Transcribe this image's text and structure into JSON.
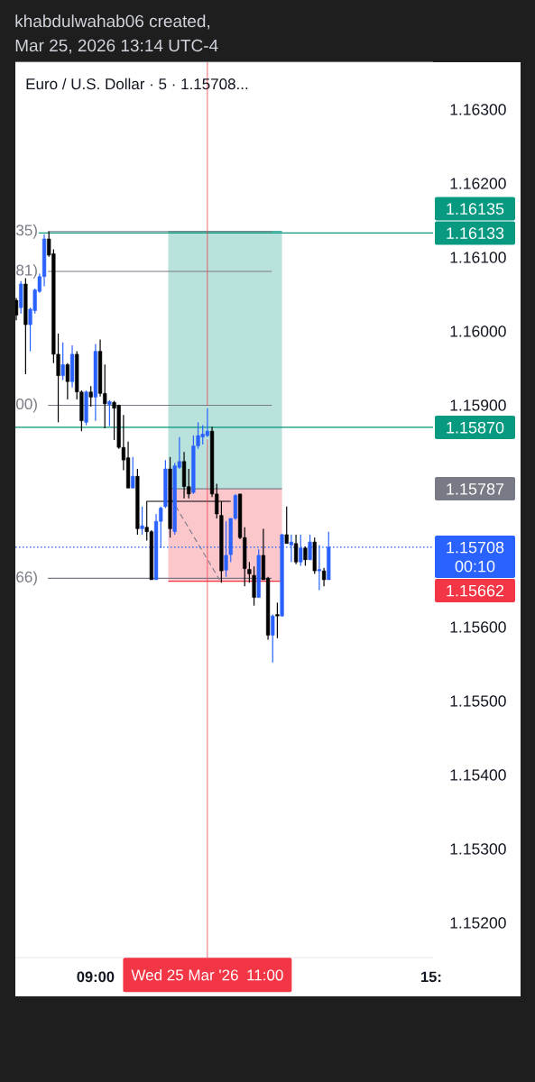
{
  "chart_data": {
    "type": "candlestick",
    "title": "Euro / U.S. Dollar · 5 · 1.15708...",
    "annotations": [
      "khabdulwahab06 created,",
      "Mar 25, 2026 13:14 UTC-4",
      "00:10",
      "1.16135",
      "1.15787",
      "1.15662",
      {
        "text": "35)",
        "x": "2026-03-25T08:09",
        "y": 1.16135
      },
      {
        "text": "81)",
        "x": "2026-03-25T08:09",
        "y": 1.16081
      },
      {
        "text": "00)",
        "x": "2026-03-25T08:09",
        "y": 1.159
      },
      {
        "text": "66)",
        "x": "2026-03-25T08:09",
        "y": 1.15666
      }
    ],
    "x": [
      "2026-03-25T07:35",
      "2026-03-25T07:40",
      "2026-03-25T07:45",
      "2026-03-25T07:50",
      "2026-03-25T07:55",
      "2026-03-25T08:00",
      "2026-03-25T08:05",
      "2026-03-25T08:10",
      "2026-03-25T08:15",
      "2026-03-25T08:20",
      "2026-03-25T08:25",
      "2026-03-25T08:30",
      "2026-03-25T08:35",
      "2026-03-25T08:40",
      "2026-03-25T08:45",
      "2026-03-25T08:50",
      "2026-03-25T08:55",
      "2026-03-25T09:00",
      "2026-03-25T09:05",
      "2026-03-25T09:10",
      "2026-03-25T09:15",
      "2026-03-25T09:20",
      "2026-03-25T09:25",
      "2026-03-25T09:30",
      "2026-03-25T09:35",
      "2026-03-25T09:40",
      "2026-03-25T09:45",
      "2026-03-25T09:50",
      "2026-03-25T09:55",
      "2026-03-25T10:00",
      "2026-03-25T10:05",
      "2026-03-25T10:10",
      "2026-03-25T10:15",
      "2026-03-25T10:20",
      "2026-03-25T10:25",
      "2026-03-25T10:30",
      "2026-03-25T10:35",
      "2026-03-25T10:40",
      "2026-03-25T10:45",
      "2026-03-25T10:50",
      "2026-03-25T10:55",
      "2026-03-25T11:00",
      "2026-03-25T11:05",
      "2026-03-25T11:10",
      "2026-03-25T11:15",
      "2026-03-25T11:20",
      "2026-03-25T11:25",
      "2026-03-25T11:30",
      "2026-03-25T11:35",
      "2026-03-25T11:40",
      "2026-03-25T11:45",
      "2026-03-25T11:50",
      "2026-03-25T11:55",
      "2026-03-25T12:00",
      "2026-03-25T12:05",
      "2026-03-25T12:10",
      "2026-03-25T12:15",
      "2026-03-25T12:20",
      "2026-03-25T12:25",
      "2026-03-25T12:30",
      "2026-03-25T12:35",
      "2026-03-25T12:40",
      "2026-03-25T12:45",
      "2026-03-25T12:50",
      "2026-03-25T12:55",
      "2026-03-25T13:00",
      "2026-03-25T13:05",
      "2026-03-25T13:10"
    ],
    "ohlc": [
      [
        1.16042,
        1.16045,
        1.16015,
        1.16022
      ],
      [
        1.16032,
        1.16068,
        1.16024,
        1.16064
      ],
      [
        1.16064,
        1.16072,
        1.15942,
        1.16009
      ],
      [
        1.16009,
        1.16032,
        1.15973,
        1.1603
      ],
      [
        1.16028,
        1.16058,
        1.16024,
        1.16056
      ],
      [
        1.16054,
        1.16078,
        1.16052,
        1.16074
      ],
      [
        1.16074,
        1.16131,
        1.16061,
        1.16125
      ],
      [
        1.16125,
        1.16135,
        1.16101,
        1.16103
      ],
      [
        1.16105,
        1.16111,
        1.15957,
        1.15969
      ],
      [
        1.15969,
        1.15997,
        1.15877,
        1.1594
      ],
      [
        1.1594,
        1.15985,
        1.15934,
        1.15955
      ],
      [
        1.15955,
        1.15957,
        1.15908,
        1.15932
      ],
      [
        1.15932,
        1.15981,
        1.15924,
        1.15969
      ],
      [
        1.15969,
        1.15973,
        1.15908,
        1.15918
      ],
      [
        1.15918,
        1.1592,
        1.15865,
        1.15879
      ],
      [
        1.15877,
        1.1592,
        1.15873,
        1.15918
      ],
      [
        1.15918,
        1.15926,
        1.15898,
        1.15911
      ],
      [
        1.15911,
        1.15983,
        1.15879,
        1.15973
      ],
      [
        1.15973,
        1.15989,
        1.15912,
        1.15916
      ],
      [
        1.15916,
        1.15955,
        1.15869,
        1.15902
      ],
      [
        1.15901,
        1.15907,
        1.15872,
        1.15905
      ],
      [
        1.15904,
        1.15906,
        1.15853,
        1.15896
      ],
      [
        1.159,
        1.15901,
        1.15841,
        1.15843
      ],
      [
        1.15843,
        1.15887,
        1.15812,
        1.15826
      ],
      [
        1.15829,
        1.15851,
        1.15788,
        1.15788
      ],
      [
        1.15788,
        1.1583,
        1.15788,
        1.15804
      ],
      [
        1.15804,
        1.15814,
        1.15725,
        1.15733
      ],
      [
        1.15733,
        1.15763,
        1.15725,
        1.15737
      ],
      [
        1.15735,
        1.15737,
        1.15717,
        1.15729
      ],
      [
        1.15729,
        1.15731,
        1.15664,
        1.15664
      ],
      [
        1.15664,
        1.15753,
        1.15664,
        1.15743
      ],
      [
        1.15743,
        1.15763,
        1.15707,
        1.15761
      ],
      [
        1.15763,
        1.15826,
        1.15761,
        1.15814
      ],
      [
        1.15814,
        1.1583,
        1.15721,
        1.15733
      ],
      [
        1.15729,
        1.15822,
        1.15725,
        1.15818
      ],
      [
        1.15816,
        1.15857,
        1.15814,
        1.15824
      ],
      [
        1.15824,
        1.15837,
        1.15774,
        1.1579
      ],
      [
        1.1579,
        1.15814,
        1.15774,
        1.1578
      ],
      [
        1.15782,
        1.15859,
        1.1578,
        1.15845
      ],
      [
        1.15845,
        1.15877,
        1.15841,
        1.15859
      ],
      [
        1.15857,
        1.15873,
        1.15847,
        1.15861
      ],
      [
        1.15859,
        1.15896,
        1.15857,
        1.15865
      ],
      [
        1.15865,
        1.15871,
        1.15776,
        1.1578
      ],
      [
        1.1578,
        1.15794,
        1.15747,
        1.15753
      ],
      [
        1.15751,
        1.1577,
        1.1566,
        1.15676
      ],
      [
        1.15677,
        1.15743,
        1.15668,
        1.15697
      ],
      [
        1.15698,
        1.15747,
        1.15688,
        1.15747
      ],
      [
        1.15747,
        1.1578,
        1.15745,
        1.15778
      ],
      [
        1.1578,
        1.1578,
        1.15719,
        1.15721
      ],
      [
        1.15721,
        1.15735,
        1.15655,
        1.15679
      ],
      [
        1.15678,
        1.15688,
        1.1566,
        1.15672
      ],
      [
        1.1567,
        1.15682,
        1.15629,
        1.1564
      ],
      [
        1.1564,
        1.15705,
        1.1564,
        1.15697
      ],
      [
        1.15697,
        1.15733,
        1.15664,
        1.15664
      ],
      [
        1.15666,
        1.15668,
        1.15583,
        1.15589
      ],
      [
        1.15589,
        1.15617,
        1.15552,
        1.15615
      ],
      [
        1.15617,
        1.15633,
        1.15585,
        1.15615
      ],
      [
        1.15615,
        1.15726,
        1.15614,
        1.15725
      ],
      [
        1.15725,
        1.15763,
        1.15713,
        1.15713
      ],
      [
        1.15711,
        1.15725,
        1.15688,
        1.15715
      ],
      [
        1.15713,
        1.15725,
        1.15685,
        1.15688
      ],
      [
        1.15688,
        1.15725,
        1.15683,
        1.15707
      ],
      [
        1.15707,
        1.15709,
        1.15683,
        1.15691
      ],
      [
        1.15691,
        1.15725,
        1.15691,
        1.15715
      ],
      [
        1.15715,
        1.15721,
        1.15672,
        1.15676
      ],
      [
        1.15676,
        1.15711,
        1.1565,
        1.15678
      ],
      [
        1.15676,
        1.1568,
        1.15655,
        1.15664
      ],
      [
        1.15664,
        1.15729,
        1.15664,
        1.15708
      ]
    ],
    "colors": [
      "#000000",
      "#2962ff",
      "#000000",
      "#2962ff",
      "#2962ff",
      "#2962ff",
      "#2962ff",
      "#000000",
      "#000000",
      "#000000",
      "#2962ff",
      "#000000",
      "#2962ff",
      "#000000",
      "#000000",
      "#2962ff",
      "#000000",
      "#2962ff",
      "#000000",
      "#000000",
      "#2962ff",
      "#000000",
      "#000000",
      "#000000",
      "#000000",
      "#2962ff",
      "#000000",
      "#2962ff",
      "#000000",
      "#000000",
      "#2962ff",
      "#2962ff",
      "#2962ff",
      "#000000",
      "#2962ff",
      "#2962ff",
      "#000000",
      "#000000",
      "#2962ff",
      "#2962ff",
      "#2962ff",
      "#2962ff",
      "#000000",
      "#000000",
      "#000000",
      "#2962ff",
      "#2962ff",
      "#2962ff",
      "#000000",
      "#000000",
      "#000000",
      "#000000",
      "#2962ff",
      "#000000",
      "#000000",
      "#2962ff",
      "#000000",
      "#2962ff",
      "#000000",
      "#2962ff",
      "#000000",
      "#2962ff",
      "#000000",
      "#2962ff",
      "#000000",
      "#2962ff",
      "#000000",
      "#2962ff"
    ],
    "series": [
      {
        "type": "line",
        "name": "1.16133",
        "color": "#089981",
        "x": [
          "2026-03-25T07:59",
          "2026-03-25T15:02"
        ],
        "values": [
          1.16133,
          1.16133
        ]
      },
      {
        "type": "line",
        "color": "#089981",
        "x": [
          "2026-03-25T10:18",
          "2026-03-25T12:20"
        ],
        "values": [
          1.16135,
          1.16135
        ],
        "lower": [
          1.15787,
          1.15787
        ],
        "upper": [
          1.16135,
          1.16135
        ]
      },
      {
        "type": "line",
        "color": "#f23645",
        "x": [
          "2026-03-25T10:18",
          "2026-03-25T12:20"
        ],
        "values": [
          1.15662,
          1.15662
        ],
        "lower": [
          1.15662,
          1.15662
        ],
        "upper": [
          1.15787,
          1.15787
        ]
      },
      {
        "type": "line",
        "color": "#787b86",
        "x": [
          "2026-03-25T10:18",
          "2026-03-25T12:20"
        ],
        "values": [
          1.15787,
          1.15787
        ]
      },
      {
        "type": "line",
        "color": "#787b86",
        "x": [
          "2026-03-25T08:09",
          "2026-03-25T12:09"
        ],
        "values": [
          1.16135,
          1.16135
        ]
      },
      {
        "type": "line",
        "color": "#787b86",
        "x": [
          "2026-03-25T08:09",
          "2026-03-25T12:09"
        ],
        "values": [
          1.16081,
          1.16081
        ]
      },
      {
        "type": "line",
        "color": "#787b86",
        "x": [
          "2026-03-25T08:09",
          "2026-03-25T12:09"
        ],
        "values": [
          1.159,
          1.159
        ]
      },
      {
        "type": "line",
        "color": "#787b86",
        "x": [
          "2026-03-25T08:09",
          "2026-03-25T12:09"
        ],
        "values": [
          1.15666,
          1.15666
        ]
      },
      {
        "type": "line",
        "color": "#787b86",
        "line_style": "dashed",
        "x": [
          "2026-03-25T10:21",
          "2026-03-25T11:13"
        ],
        "values": [
          1.15774,
          1.15664
        ]
      },
      {
        "type": "line",
        "color": "#000000",
        "x": [
          "2026-03-25T09:55",
          "2026-03-25T09:55",
          "2026-03-25T11:25"
        ],
        "values": [
          1.15737,
          1.1577,
          1.1577
        ]
      }
    ],
    "ref_lines": [
      {
        "axis": "y",
        "value": 1.1587,
        "label": "1.15870",
        "color": "#089981"
      },
      {
        "axis": "y",
        "value": 1.15708,
        "label": "1.15708",
        "color": "#2962ff",
        "line_style": "dotted"
      },
      {
        "axis": "x",
        "value": "2026-03-25T11:00",
        "label": "Wed 25 Mar '26  11:00",
        "color": "#f23645"
      }
    ],
    "xlim": [
      "2026-03-25T07:34",
      "2026-03-25T15:02"
    ],
    "xticks": [
      {
        "value": "2026-03-25T09:00",
        "label": "09:00"
      },
      {
        "value": "2026-03-25T15:00",
        "label": "15:"
      }
    ],
    "ylim": [
      1.15153,
      1.16364
    ],
    "yticks": [
      {
        "value": 1.152,
        "label": "1.15200"
      },
      {
        "value": 1.153,
        "label": "1.15300"
      },
      {
        "value": 1.154,
        "label": "1.15400"
      },
      {
        "value": 1.155,
        "label": "1.15500"
      },
      {
        "value": 1.156,
        "label": "1.15600"
      },
      {
        "value": 1.159,
        "label": "1.15900"
      },
      {
        "value": 1.16,
        "label": "1.16000"
      },
      {
        "value": 1.161,
        "label": "1.16100"
      },
      {
        "value": 1.162,
        "label": "1.16200"
      },
      {
        "value": 1.163,
        "label": "1.16300"
      }
    ]
  }
}
